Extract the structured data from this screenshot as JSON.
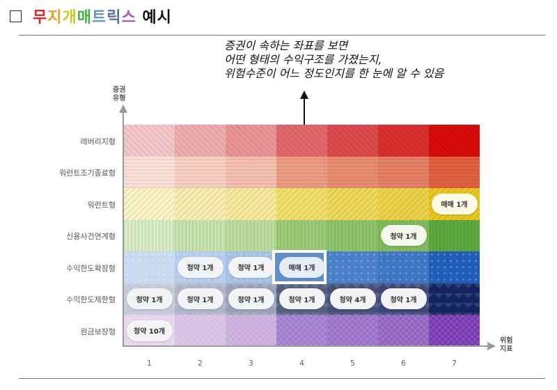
{
  "header": {
    "checkbox_checked": false,
    "title_parts": [
      {
        "text": "무",
        "color": "#e02020"
      },
      {
        "text": "지",
        "color": "#f0a020"
      },
      {
        "text": "개",
        "color": "#c8c820"
      },
      {
        "text": "매",
        "color": "#40b040"
      },
      {
        "text": "트",
        "color": "#6090d0"
      },
      {
        "text": "릭",
        "color": "#5070a0"
      },
      {
        "text": "스",
        "color": "#b050c0"
      },
      {
        "text": " 예시",
        "color": "#111111"
      }
    ]
  },
  "note": {
    "text": "증권이 속하는 좌표를 보면\n어떤 형태의 수익구조를 가졌는지,\n위험수준이 어느 정도인지를 한 눈에 알 수 있음"
  },
  "axes": {
    "y_title": "증권\n유형",
    "x_title": "위험\n지표"
  },
  "chart_data": {
    "type": "heatmap",
    "title": "무지개매트릭스 예시",
    "xlabel": "위험지표",
    "ylabel": "증권유형",
    "x": [
      "1",
      "2",
      "3",
      "4",
      "5",
      "6",
      "7"
    ],
    "y": [
      "레버리지형",
      "워런트조기종료형",
      "워런트형",
      "신용사건연계형",
      "수익한도확장형",
      "수익한도제한형",
      "원금보장형"
    ],
    "row_colors": [
      [
        "#f3c7c9",
        "#eeaeb0",
        "#e99496",
        "#e2686b",
        "#dc4a4d",
        "#d9302f",
        "#d90c0c"
      ],
      [
        "#fbe0d8",
        "#f8d0c4",
        "#f5c0b0",
        "#ec9c82",
        "#e88c70",
        "#e58064",
        "#e06040"
      ],
      [
        "#fbf4c8",
        "#f9eeb0",
        "#f7e99c",
        "#f2df6a",
        "#efd85a",
        "#ecd24a",
        "#e8c820"
      ],
      [
        "#d8edc8",
        "#c8e4b0",
        "#bcdda0",
        "#9ccb78",
        "#8ec46a",
        "#82bc5c",
        "#5faa3e"
      ],
      [
        "#c8daf0",
        "#b4ccea",
        "#a4c0e4",
        "#5e8fd0",
        "#4a80ca",
        "#3e76c4",
        "#1f5db8"
      ],
      [
        "#c4c8d8",
        "#aeb4c8",
        "#9aa0b8",
        "#53607e",
        "#44507a",
        "#3c4878",
        "#13245e"
      ],
      [
        "#e4d4ec",
        "#d6c0e4",
        "#c8acdc",
        "#a27ccc",
        "#9a70c6",
        "#9264c0",
        "#7a38b0"
      ]
    ],
    "cells": [
      {
        "row": 2,
        "col": 7,
        "label": "매매 1개"
      },
      {
        "row": 3,
        "col": 6,
        "label": "청약 1개"
      },
      {
        "row": 4,
        "col": 2,
        "label": "청약 1개"
      },
      {
        "row": 4,
        "col": 3,
        "label": "청약 1개"
      },
      {
        "row": 4,
        "col": 4,
        "label": "매매 1개",
        "highlighted": true
      },
      {
        "row": 5,
        "col": 1,
        "label": "청약 1개"
      },
      {
        "row": 5,
        "col": 2,
        "label": "청약 1개"
      },
      {
        "row": 5,
        "col": 3,
        "label": "청약 1개"
      },
      {
        "row": 5,
        "col": 4,
        "label": "청약 1개"
      },
      {
        "row": 5,
        "col": 5,
        "label": "청약 4개"
      },
      {
        "row": 5,
        "col": 6,
        "label": "청약 1개"
      },
      {
        "row": 6,
        "col": 1,
        "label": "청약 10개"
      }
    ]
  }
}
